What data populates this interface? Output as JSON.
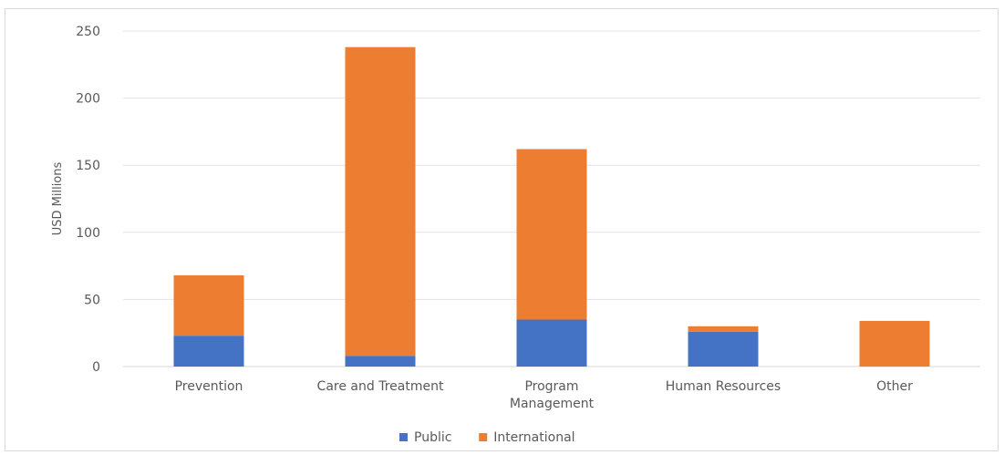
{
  "chart_data": {
    "type": "bar",
    "stacked": true,
    "categories": [
      [
        "Prevention"
      ],
      [
        "Care and Treatment"
      ],
      [
        "Program",
        "Management"
      ],
      [
        "Human Resources"
      ],
      [
        "Other"
      ]
    ],
    "series": [
      {
        "name": "Public",
        "color": "#4472c4",
        "values": [
          23,
          8,
          35,
          26,
          0
        ]
      },
      {
        "name": "International",
        "color": "#ed7d31",
        "values": [
          45,
          230,
          127,
          4,
          34
        ]
      }
    ],
    "ylabel": "USD Millions",
    "xlabel": "",
    "title": "",
    "ylim": [
      0,
      250
    ],
    "yticks": [
      0,
      50,
      100,
      150,
      200,
      250
    ],
    "grid": true,
    "legend_position": "bottom"
  }
}
